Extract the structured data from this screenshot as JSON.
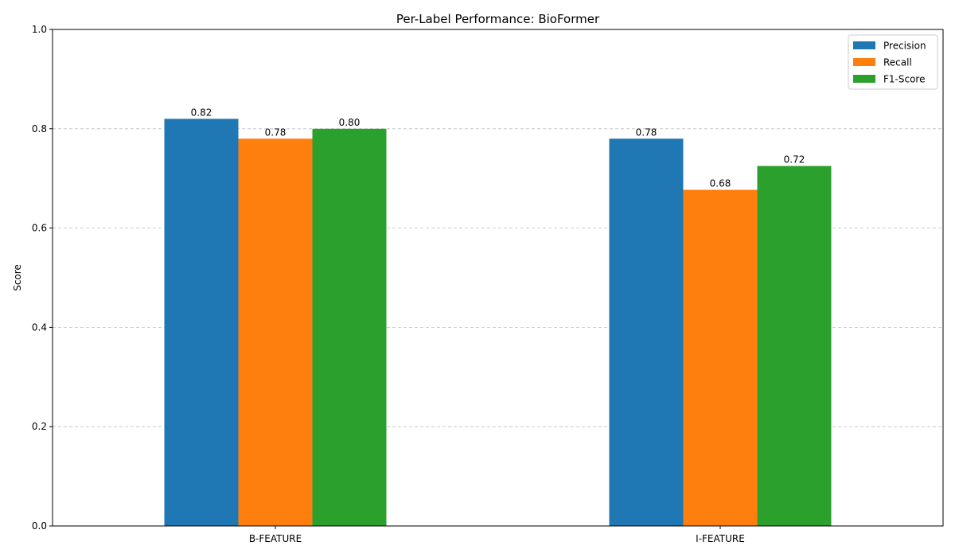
{
  "chart_data": {
    "type": "bar",
    "title": "Per-Label Performance: BioFormer",
    "xlabel": "",
    "ylabel": "Score",
    "ylim": [
      0,
      1.0
    ],
    "yticks": [
      "0.0",
      "0.2",
      "0.4",
      "0.6",
      "0.8",
      "1.0"
    ],
    "grid": "y-dashed",
    "legend_position": "top-right",
    "categories": [
      "B-FEATURE",
      "I-FEATURE"
    ],
    "series": [
      {
        "name": "Precision",
        "color": "#1f77b4",
        "values": [
          0.82,
          0.78
        ],
        "labels": [
          "0.82",
          "0.78"
        ]
      },
      {
        "name": "Recall",
        "color": "#ff7f0e",
        "values": [
          0.78,
          0.677
        ],
        "labels": [
          "0.78",
          "0.68"
        ]
      },
      {
        "name": "F1-Score",
        "color": "#2ca02c",
        "values": [
          0.8,
          0.725
        ],
        "labels": [
          "0.80",
          "0.72"
        ]
      }
    ]
  }
}
